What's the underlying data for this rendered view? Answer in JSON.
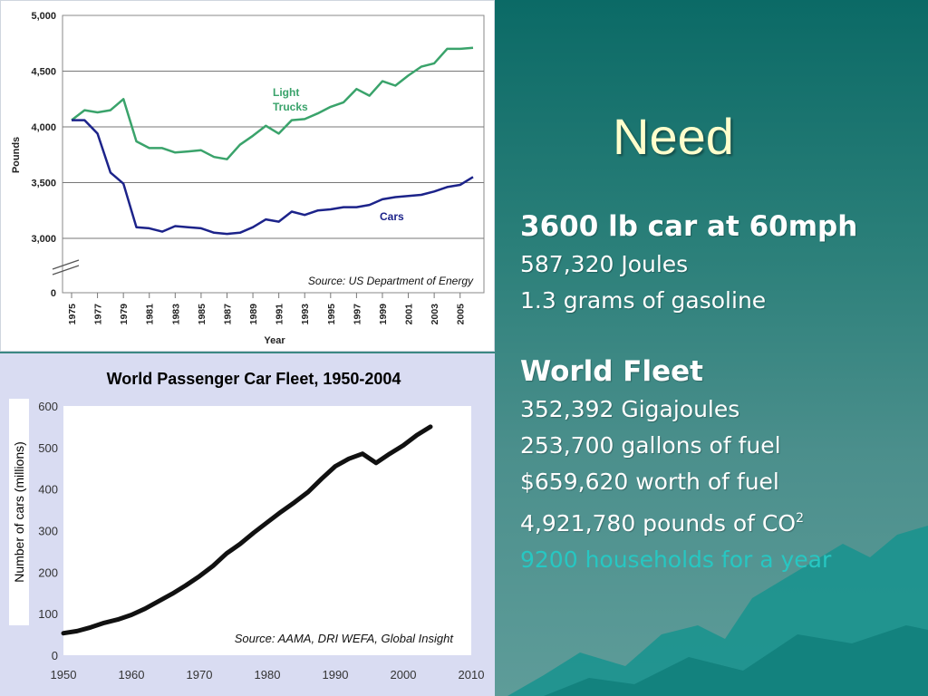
{
  "slide": {
    "title": "Need",
    "bullets": [
      {
        "text": "3600 lb car at 60mph",
        "style": "heading"
      },
      {
        "text": "587,320 Joules",
        "style": "line"
      },
      {
        "text": "1.3 grams of gasoline",
        "style": "line"
      },
      {
        "text": "World Fleet",
        "style": "heading"
      },
      {
        "text": "352,392 Gigajoules",
        "style": "line"
      },
      {
        "text": "253,700 gallons of fuel",
        "style": "line"
      },
      {
        "text": "$659,620 worth of fuel",
        "style": "line"
      },
      {
        "text": "4,921,780 pounds of CO",
        "sup": "2",
        "style": "line"
      },
      {
        "text": "9200 households for a year",
        "style": "accent"
      }
    ],
    "colors": {
      "title": "#ffffcc",
      "text": "#ffffff",
      "accent": "#27c7c2",
      "background": "#2a7f79"
    }
  },
  "chart_data": [
    {
      "type": "line",
      "title": "",
      "xlabel": "Year",
      "ylabel": "Pounds",
      "ylim": [
        0,
        5000
      ],
      "yticks": [
        "0",
        "3,000",
        "3,500",
        "4,000",
        "4,500",
        "5,000"
      ],
      "axis_break": true,
      "grid": true,
      "source": "Source: US Department of Energy",
      "x": [
        1975,
        1976,
        1977,
        1978,
        1979,
        1980,
        1981,
        1982,
        1983,
        1984,
        1985,
        1986,
        1987,
        1988,
        1989,
        1990,
        1991,
        1992,
        1993,
        1994,
        1995,
        1996,
        1997,
        1998,
        1999,
        2000,
        2001,
        2002,
        2003,
        2004,
        2005,
        2006
      ],
      "xticks": [
        "1975",
        "1977",
        "1979",
        "1981",
        "1983",
        "1985",
        "1987",
        "1989",
        "1991",
        "1993",
        "1995",
        "1997",
        "1999",
        "2001",
        "2003",
        "2005"
      ],
      "series": [
        {
          "name": "Light Trucks",
          "color": "#3aa36b",
          "values": [
            4060,
            4150,
            4130,
            4150,
            4250,
            3870,
            3810,
            3810,
            3770,
            3780,
            3790,
            3730,
            3710,
            3840,
            3920,
            4010,
            3940,
            4060,
            4070,
            4120,
            4180,
            4220,
            4340,
            4280,
            4410,
            4370,
            4460,
            4540,
            4570,
            4700,
            4700,
            4710
          ]
        },
        {
          "name": "Cars",
          "color": "#1c238a",
          "values": [
            4060,
            4060,
            3940,
            3590,
            3490,
            3100,
            3090,
            3060,
            3110,
            3100,
            3090,
            3050,
            3040,
            3050,
            3100,
            3170,
            3150,
            3240,
            3210,
            3250,
            3260,
            3280,
            3280,
            3300,
            3350,
            3370,
            3380,
            3390,
            3420,
            3460,
            3480,
            3550
          ]
        }
      ]
    },
    {
      "type": "line",
      "title": "World Passenger Car Fleet, 1950-2004",
      "xlabel": "",
      "ylabel": "Number of cars (millions)",
      "xlim": [
        1950,
        2010
      ],
      "ylim": [
        0,
        600
      ],
      "xticks": [
        "1950",
        "1960",
        "1970",
        "1980",
        "1990",
        "2000",
        "2010"
      ],
      "yticks": [
        "0",
        "100",
        "200",
        "300",
        "400",
        "500",
        "600"
      ],
      "source": "Source: AAMA, DRI WEFA, Global Insight",
      "series": [
        {
          "name": "",
          "color": "#111111",
          "x": [
            1950,
            1952,
            1954,
            1956,
            1958,
            1960,
            1962,
            1964,
            1966,
            1968,
            1970,
            1972,
            1974,
            1976,
            1978,
            1980,
            1982,
            1984,
            1986,
            1988,
            1990,
            1992,
            1994,
            1996,
            1998,
            2000,
            2002,
            2004
          ],
          "values": [
            53,
            58,
            67,
            78,
            86,
            97,
            112,
            130,
            148,
            168,
            190,
            215,
            245,
            268,
            295,
            320,
            345,
            368,
            393,
            425,
            455,
            473,
            485,
            463,
            485,
            505,
            530,
            550
          ]
        }
      ]
    }
  ]
}
